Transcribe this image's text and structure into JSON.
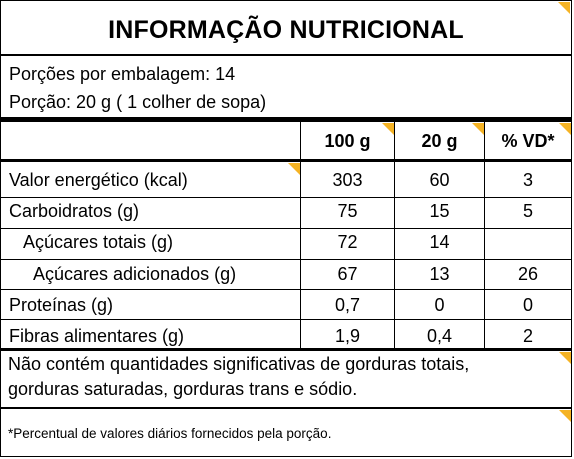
{
  "title": "INFORMAÇÃO NUTRICIONAL",
  "servings_per_package": "Porções por embalagem: 14",
  "serving_size": "Porção: 20 g ( 1 colher de sopa)",
  "columns": [
    "100 g",
    "20 g",
    "% VD*"
  ],
  "rows": [
    {
      "label": "Valor energético (kcal)",
      "v100": "303",
      "v20": "60",
      "vd": "3"
    },
    {
      "label": "Carboidratos (g)",
      "v100": "75",
      "v20": "15",
      "vd": "5"
    },
    {
      "label": "Açúcares totais (g)",
      "v100": "72",
      "v20": "14",
      "vd": ""
    },
    {
      "label": "Açúcares adicionados (g)",
      "v100": "67",
      "v20": "13",
      "vd": "26"
    },
    {
      "label": "Proteínas (g)",
      "v100": "0,7",
      "v20": "0",
      "vd": "0"
    },
    {
      "label": "Fibras alimentares (g)",
      "v100": "1,9",
      "v20": "0,4",
      "vd": "2"
    }
  ],
  "note_line1": "Não contém quantidades significativas de gorduras totais,",
  "note_line2": "gorduras saturadas, gorduras trans  e sódio.",
  "footnote": "*Percentual de valores diários fornecidos pela porção.",
  "colors": {
    "accent": "#f5b324",
    "border": "#000000"
  }
}
